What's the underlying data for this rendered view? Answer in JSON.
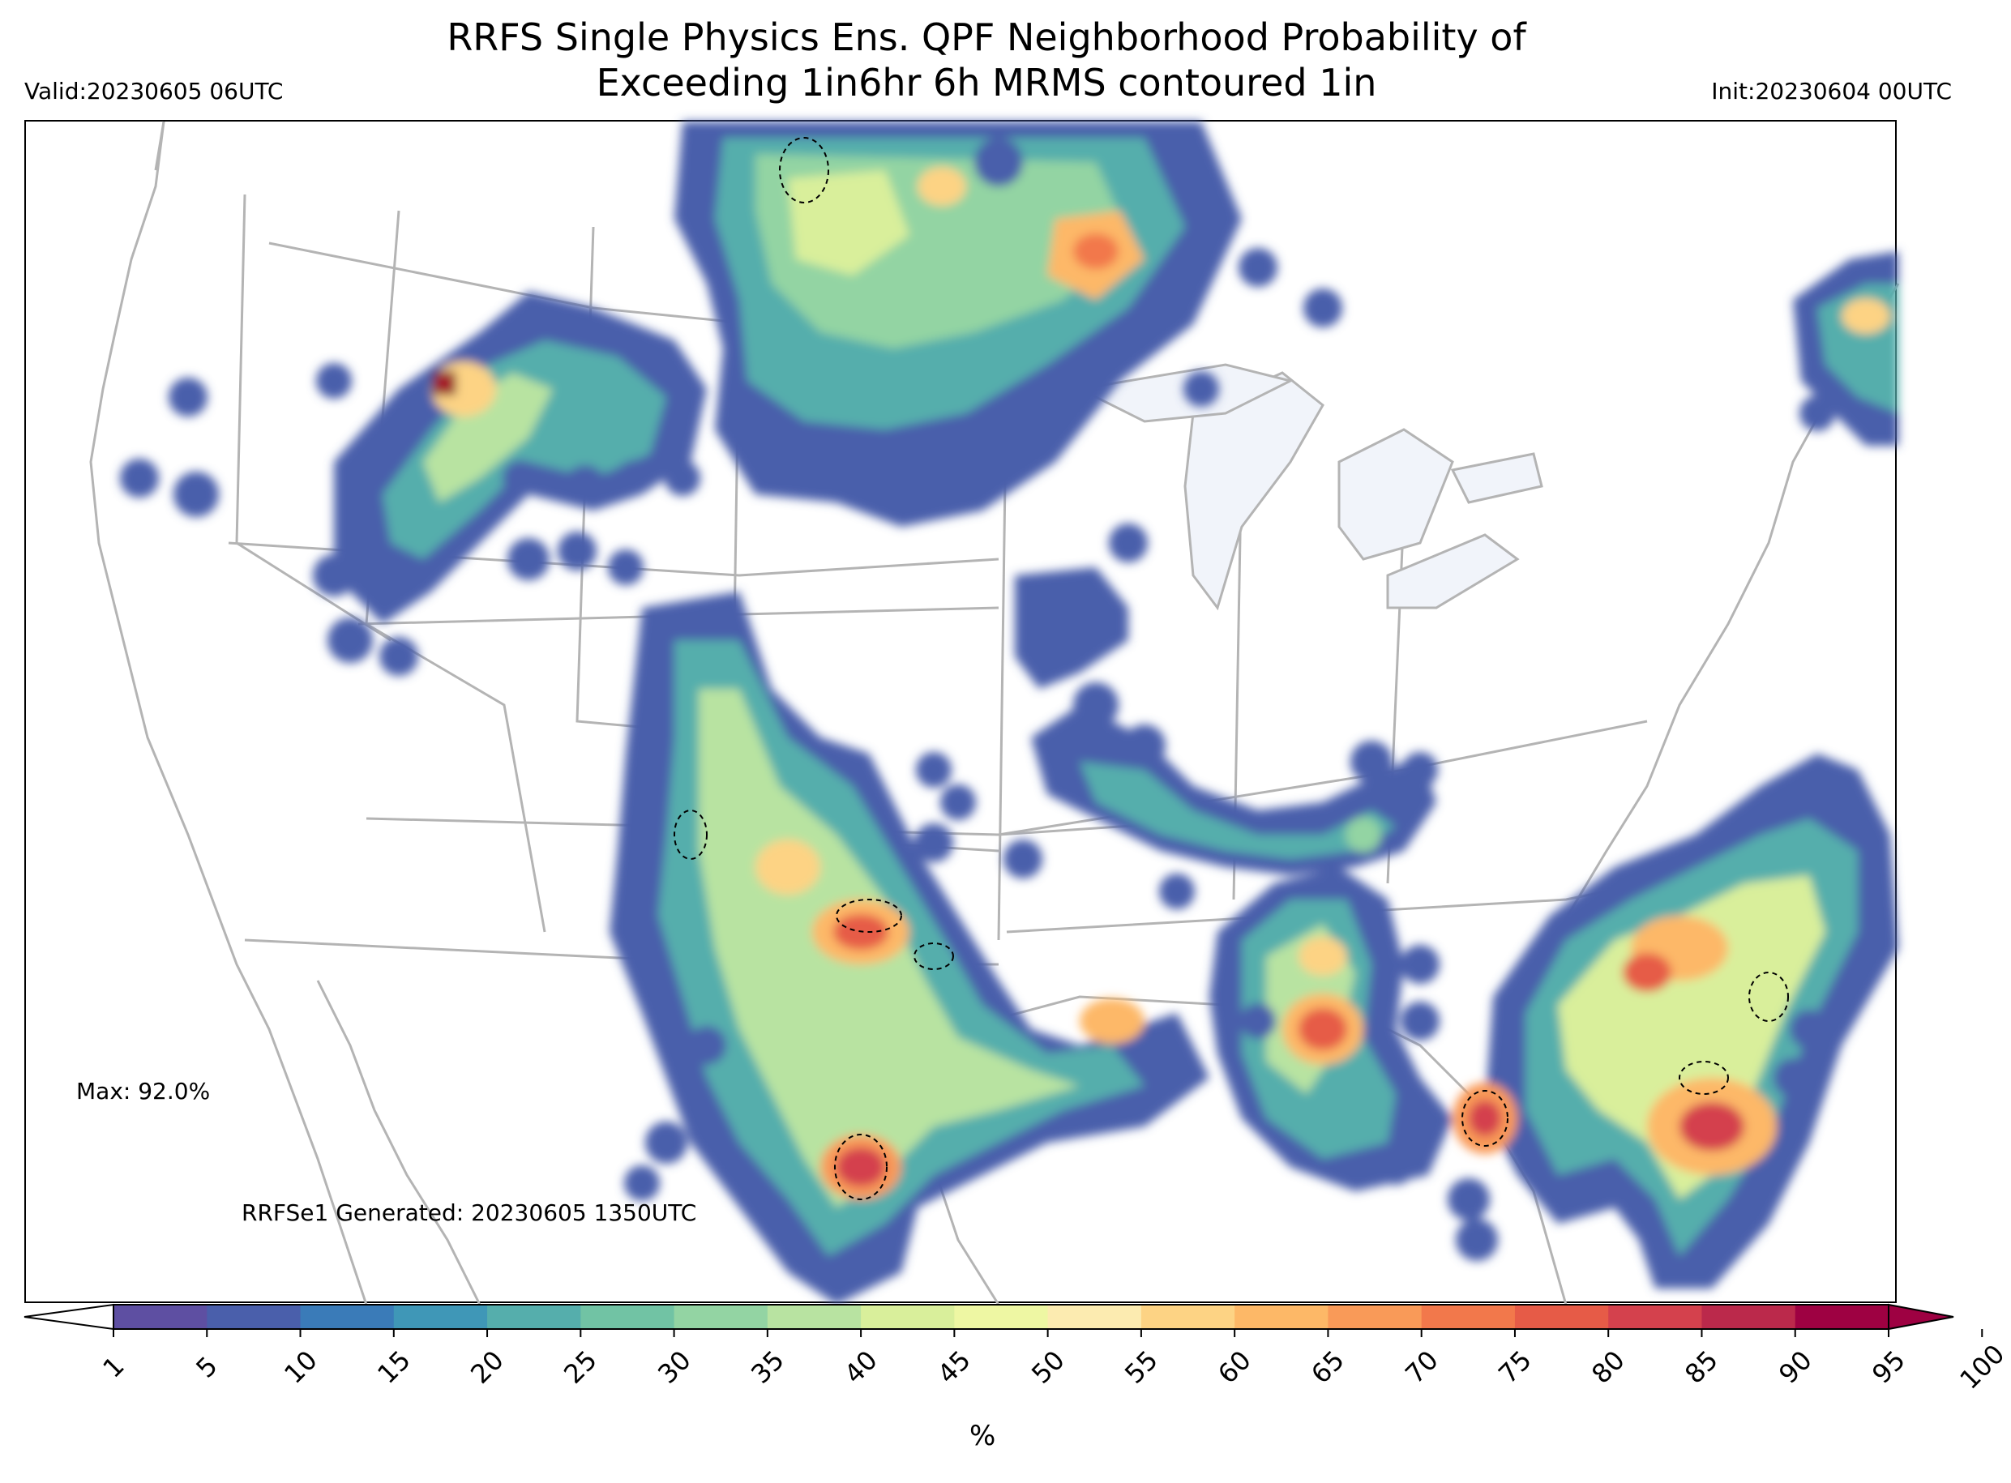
{
  "title_line1": "RRFS Single Physics Ens. QPF Neighborhood Probability of",
  "title_line2": "Exceeding 1in6hr 6h MRMS contoured 1in",
  "valid_text": "Valid:20230605 06UTC",
  "init_text": "Init:20230604 00UTC",
  "max_text": "Max: 92.0%",
  "generated_text": "RRFSe1 Generated: 20230605 1350UTC",
  "colorbar": {
    "ticks": [
      "1",
      "5",
      "10",
      "15",
      "20",
      "25",
      "30",
      "35",
      "40",
      "45",
      "50",
      "55",
      "60",
      "65",
      "70",
      "75",
      "80",
      "85",
      "90",
      "95",
      "100"
    ],
    "colors": [
      "#5e4fa2",
      "#4a5fab",
      "#3a7bb8",
      "#3f97b7",
      "#55aeac",
      "#71c3a4",
      "#93d4a3",
      "#b8e3a1",
      "#d9ef9b",
      "#eef7a3",
      "#fcebb0",
      "#fdd384",
      "#fdb867",
      "#f99a58",
      "#f2784b",
      "#e65b47",
      "#d4414d",
      "#bb294b",
      "#9e0142"
    ],
    "unit": "%"
  },
  "legend_colors": {
    "map_border": "#b4b4b4",
    "lake": "#f1f4fa",
    "max_marker": "#a81d2b"
  }
}
